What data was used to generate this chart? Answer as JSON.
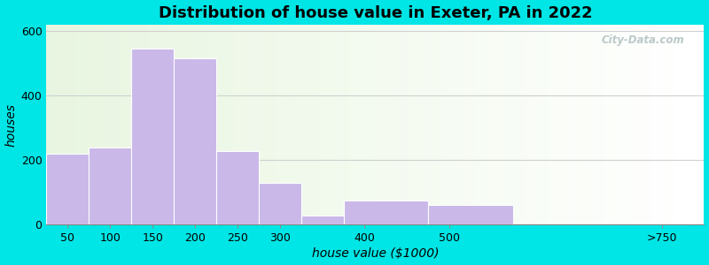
{
  "title": "Distribution of house value in Exeter, PA in 2022",
  "xlabel": "house value ($1000)",
  "ylabel": "houses",
  "bin_edges": [
    25,
    75,
    125,
    175,
    225,
    275,
    325,
    375,
    475,
    575,
    800
  ],
  "bar_values": [
    220,
    238,
    545,
    515,
    228,
    130,
    28,
    75,
    62,
    0
  ],
  "tick_positions": [
    50,
    100,
    150,
    200,
    250,
    300,
    400,
    500,
    750
  ],
  "tick_labels": [
    "50",
    "100",
    "150",
    "200",
    "250",
    "300",
    "400",
    "500",
    ">750"
  ],
  "bar_color": "#c9b8e8",
  "bar_edgecolor": "#ffffff",
  "ylim": [
    0,
    620
  ],
  "yticks": [
    0,
    200,
    400,
    600
  ],
  "background_outer": "#00e5e5",
  "background_inner_left": "#e8f5e0",
  "background_inner_right": "#ffffff",
  "grid_color": "#d0d0d0",
  "title_fontsize": 13,
  "axis_fontsize": 10,
  "tick_fontsize": 9,
  "watermark_text": "City-Data.com"
}
